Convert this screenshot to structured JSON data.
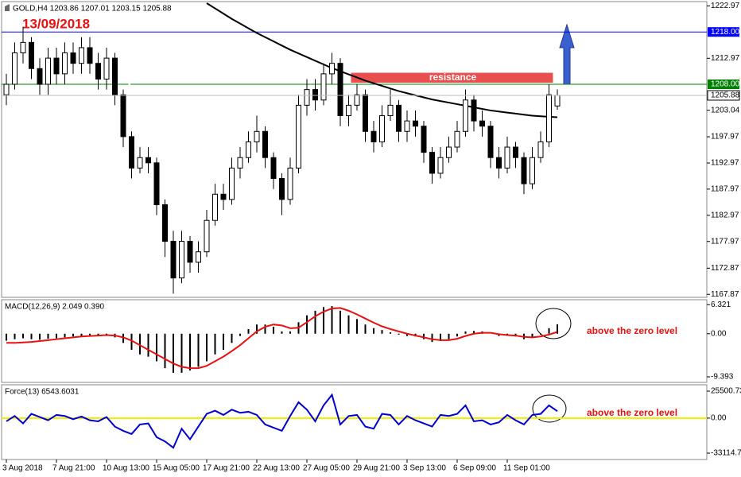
{
  "chart_data": [
    {
      "type": "candlestick",
      "title": "GOLD,H4  1203.86 1207.01 1203.15 1205.88",
      "date_label": "13/09/2018",
      "categories": [
        "3 Aug 2018",
        null,
        null,
        null,
        null,
        null,
        "7 Aug 21:00",
        null,
        null,
        null,
        null,
        null,
        "10 Aug 13:00",
        null,
        null,
        null,
        null,
        null,
        "15 Aug 05:00",
        null,
        null,
        null,
        null,
        null,
        "17 Aug 21:00",
        null,
        null,
        null,
        null,
        null,
        "22 Aug 13:00",
        null,
        null,
        null,
        null,
        null,
        "27 Aug 05:00",
        null,
        null,
        null,
        null,
        null,
        "29 Aug 21:00",
        null,
        null,
        null,
        null,
        null,
        "3 Sep 13:00",
        null,
        null,
        null,
        null,
        null,
        "6 Sep 09:00",
        null,
        null,
        null,
        null,
        null,
        "11 Sep 01:00",
        null,
        null,
        null,
        null,
        null,
        null
      ],
      "open": [
        1206,
        1208,
        1214,
        1216,
        1211,
        1208,
        1213,
        1210,
        1214,
        1212,
        1215,
        1212,
        1209,
        1213,
        1206,
        1198,
        1192,
        1194,
        1193,
        1185,
        1178,
        1171,
        1178,
        1174,
        1176,
        1182,
        1187,
        1186,
        1192,
        1194,
        1197,
        1199,
        1194,
        1190,
        1186,
        1192,
        1204,
        1207,
        1205,
        1210,
        1212,
        1202,
        1204,
        1206,
        1199,
        1197,
        1202,
        1204,
        1199,
        1201,
        1200,
        1195,
        1191,
        1194,
        1196,
        1199,
        1205,
        1201,
        1200,
        1194,
        1192,
        1196,
        1194,
        1189,
        1194,
        1197,
        1203.86
      ],
      "high": [
        1210,
        1216,
        1219,
        1217,
        1213,
        1215,
        1215,
        1216,
        1216,
        1217,
        1217,
        1214,
        1215,
        1214,
        1207,
        1199,
        1196,
        1196,
        1194,
        1186,
        1180,
        1180,
        1179,
        1178,
        1184,
        1189,
        1189,
        1194,
        1196,
        1199,
        1202,
        1200,
        1195,
        1191,
        1194,
        1206,
        1209,
        1209,
        1212,
        1214,
        1213,
        1206,
        1208,
        1207,
        1201,
        1204,
        1207,
        1205,
        1203,
        1203,
        1201,
        1196,
        1196,
        1198,
        1201,
        1207,
        1206,
        1203,
        1201,
        1196,
        1198,
        1197,
        1195,
        1196,
        1199,
        1208,
        1207.01
      ],
      "low": [
        1204,
        1207,
        1212,
        1209,
        1206,
        1206,
        1208,
        1208,
        1210,
        1210,
        1210,
        1207,
        1207,
        1204,
        1196,
        1190,
        1191,
        1191,
        1183,
        1175,
        1168,
        1170,
        1172,
        1172,
        1175,
        1181,
        1184,
        1185,
        1190,
        1193,
        1195,
        1192,
        1188,
        1183,
        1185,
        1191,
        1202,
        1203,
        1204,
        1208,
        1200,
        1200,
        1203,
        1197,
        1195,
        1196,
        1201,
        1197,
        1197,
        1198,
        1193,
        1189,
        1190,
        1193,
        1195,
        1198,
        1199,
        1198,
        1192,
        1190,
        1191,
        1192,
        1187,
        1188,
        1193,
        1196,
        1203.15
      ],
      "close": [
        1208,
        1214,
        1216,
        1211,
        1208,
        1213,
        1210,
        1214,
        1212,
        1215,
        1212,
        1209,
        1213,
        1206,
        1198,
        1192,
        1194,
        1193,
        1185,
        1178,
        1171,
        1178,
        1174,
        1176,
        1182,
        1187,
        1186,
        1192,
        1194,
        1197,
        1199,
        1194,
        1190,
        1186,
        1192,
        1204,
        1207,
        1205,
        1210,
        1212,
        1202,
        1204,
        1206,
        1199,
        1197,
        1202,
        1204,
        1199,
        1201,
        1200,
        1195,
        1191,
        1194,
        1196,
        1199,
        1205,
        1201,
        1200,
        1194,
        1192,
        1196,
        1194,
        1189,
        1194,
        1197,
        1206,
        1205.88
      ],
      "series": [
        {
          "color": "#000000",
          "values": [
            null,
            null,
            null,
            null,
            null,
            null,
            null,
            null,
            null,
            null,
            null,
            null,
            null,
            null,
            null,
            null,
            null,
            null,
            null,
            null,
            null,
            null,
            null,
            null,
            1223.5,
            1222.5,
            1221.5,
            1220.5,
            1219.6,
            1218.7,
            1217.8,
            1217,
            1216.2,
            1215.4,
            1214.6,
            1213.9,
            1213.2,
            1212.5,
            1211.8,
            1211.1,
            1210.5,
            1209.9,
            1209.3,
            1208.7,
            1208.2,
            1207.7,
            1207.2,
            1206.7,
            1206.3,
            1205.9,
            1205.5,
            1205.1,
            1204.8,
            1204.5,
            1204.2,
            1203.9,
            1203.6,
            1203.3,
            1203,
            1202.8,
            1202.6,
            1202.4,
            1202.2,
            1202,
            1201.9,
            1201.8,
            1201.7
          ]
        },
        {
          "color": "#ffffff",
          "values": [
            null,
            null,
            1214,
            1213.5,
            1213,
            1212.5,
            1212.5,
            1212.5,
            1212.5,
            1212.5,
            1212,
            1212,
            1211.5,
            1211,
            1209.5,
            1207.5,
            1205,
            1202,
            1198.5,
            1195,
            1191,
            1187.5,
            1184,
            1181,
            1179,
            1178,
            1178.5,
            1180,
            1183,
            1186,
            1189,
            1191,
            1192.5,
            1193,
            1193,
            1194,
            1196,
            1198,
            1200,
            1202,
            1203.5,
            1204,
            1204.5,
            1204,
            1203.5,
            1203,
            1202.5,
            1202,
            1201.5,
            1201,
            1200,
            1199,
            1198,
            1197.5,
            1197.5,
            1198,
            1198.5,
            1199,
            1199,
            1199,
            1198.5,
            1198.5,
            1197.5,
            1196.5,
            1196,
            1196.5,
            1198
          ]
        }
      ],
      "hlines": [
        {
          "value": 1218,
          "label": "1218.00",
          "color": "#0000ff"
        },
        {
          "value": 1208,
          "label": "1208.00",
          "color": "#008000"
        }
      ],
      "resistance": {
        "label": "resistance",
        "band": [
          1208.3,
          1210.2
        ],
        "color": "#e85050"
      },
      "ylim": [
        1167.3,
        1223.8
      ],
      "yticks": [
        1222.97,
        1212.97,
        1203.04,
        1197.97,
        1192.97,
        1187.97,
        1182.97,
        1177.97,
        1172.87,
        1167.87
      ]
    },
    {
      "type": "macd",
      "title": "MACD(12,26,9) 2.049 0.390",
      "annotation": "above the zero level",
      "values": [
        -1.5,
        -1.2,
        -1,
        -1.2,
        -1.3,
        -1.1,
        -1,
        -0.8,
        -0.6,
        -0.5,
        -0.3,
        -0.4,
        -0.3,
        -0.8,
        -2,
        -3.5,
        -4.5,
        -5,
        -6,
        -7.5,
        -8.5,
        -8.5,
        -8,
        -7.2,
        -6,
        -4.5,
        -3.5,
        -2,
        -0.5,
        1,
        2,
        2,
        1.5,
        0.5,
        0.5,
        2.5,
        4,
        5,
        5.8,
        6,
        5,
        4,
        3.2,
        2,
        1.2,
        0.8,
        0.3,
        -0.2,
        -0.5,
        -0.6,
        -1.2,
        -1.8,
        -1.6,
        -1.2,
        -0.6,
        0.5,
        0.6,
        0.5,
        0,
        -0.5,
        -0.3,
        -0.6,
        -1.2,
        -0.8,
        -0.2,
        1.2,
        2.049
      ],
      "color": "#000000",
      "signal": {
        "color": "#e81010",
        "values": [
          -2,
          -2,
          -1.9,
          -1.8,
          -1.6,
          -1.4,
          -1.2,
          -1,
          -0.8,
          -0.6,
          -0.5,
          -0.4,
          -0.3,
          -0.4,
          -0.8,
          -1.5,
          -2.5,
          -3.5,
          -4.5,
          -5.5,
          -6.5,
          -7.2,
          -7.5,
          -7.5,
          -7,
          -6,
          -5,
          -3.8,
          -2.5,
          -1,
          0.5,
          1.5,
          2,
          1.8,
          1.2,
          1.3,
          2.5,
          3.8,
          4.8,
          5.5,
          5.6,
          5,
          4.2,
          3.3,
          2.4,
          1.6,
          1,
          0.5,
          0,
          -0.4,
          -0.8,
          -1.2,
          -1.4,
          -1.4,
          -1.1,
          -0.5,
          0,
          0.2,
          0.2,
          -0.1,
          -0.3,
          -0.4,
          -0.7,
          -0.8,
          -0.6,
          -0.2,
          0.39
        ]
      },
      "ylim": [
        -10.6,
        7.4
      ],
      "yticks": [
        6.321,
        {
          "value": 0,
          "label": "0.00"
        },
        -9.393
      ]
    },
    {
      "type": "line",
      "title": "Force(13) 6543.6031",
      "annotation": "above the zero level",
      "values": [
        -3000,
        2000,
        -5000,
        4000,
        1000,
        -2000,
        3000,
        2000,
        -1000,
        1500,
        -2000,
        -3000,
        1000,
        -8000,
        -12000,
        -15000,
        -6000,
        -5000,
        -18000,
        -22000,
        -28000,
        -10000,
        -20000,
        -8000,
        4000,
        7000,
        3000,
        8000,
        5000,
        6000,
        3000,
        -6000,
        -9000,
        -12000,
        2000,
        15000,
        8000,
        -3000,
        12000,
        22000,
        -6000,
        2000,
        3000,
        -8000,
        -10000,
        4000,
        3000,
        -6000,
        2000,
        -2000,
        -5000,
        -8000,
        3000,
        2000,
        4000,
        12000,
        -3000,
        -2000,
        -6000,
        -4000,
        3000,
        -2000,
        -6000,
        3000,
        4000,
        12000,
        6543.6031
      ],
      "color": "#0000cc",
      "zero_line_color": "#f0f000",
      "ylim": [
        -39100,
        31500
      ],
      "yticks": [
        25500.73,
        {
          "value": 0,
          "label": "0.00"
        },
        -33114.75
      ]
    }
  ]
}
